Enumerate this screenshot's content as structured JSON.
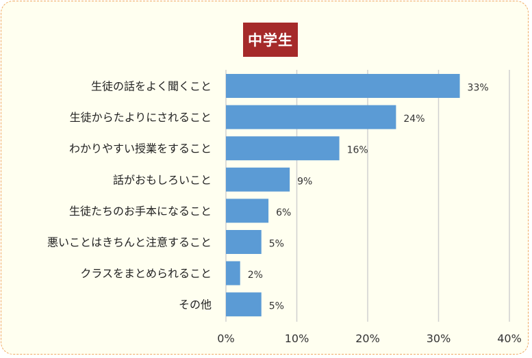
{
  "chart_data": {
    "type": "bar",
    "orientation": "horizontal",
    "title": "中学生",
    "categories": [
      "生徒の話をよく聞くこと",
      "生徒からたよりにされること",
      "わかりやすい授業をすること",
      "話がおもしろいこと",
      "生徒たちのお手本になること",
      "悪いことはきちんと注意すること",
      "クラスをまとめられること",
      "その他"
    ],
    "values": [
      33,
      24,
      16,
      9,
      6,
      5,
      2,
      5
    ],
    "value_labels": [
      "33%",
      "24%",
      "16%",
      "9%",
      "6%",
      "5%",
      "2%",
      "5%"
    ],
    "xlim": [
      0,
      40
    ],
    "xticks": [
      0,
      10,
      20,
      30,
      40
    ],
    "xtick_labels": [
      "0%",
      "10%",
      "20%",
      "30%",
      "40%"
    ],
    "grid": true,
    "bar_color": "#5b9bd5",
    "title_bg_color": "#a52a2a"
  }
}
